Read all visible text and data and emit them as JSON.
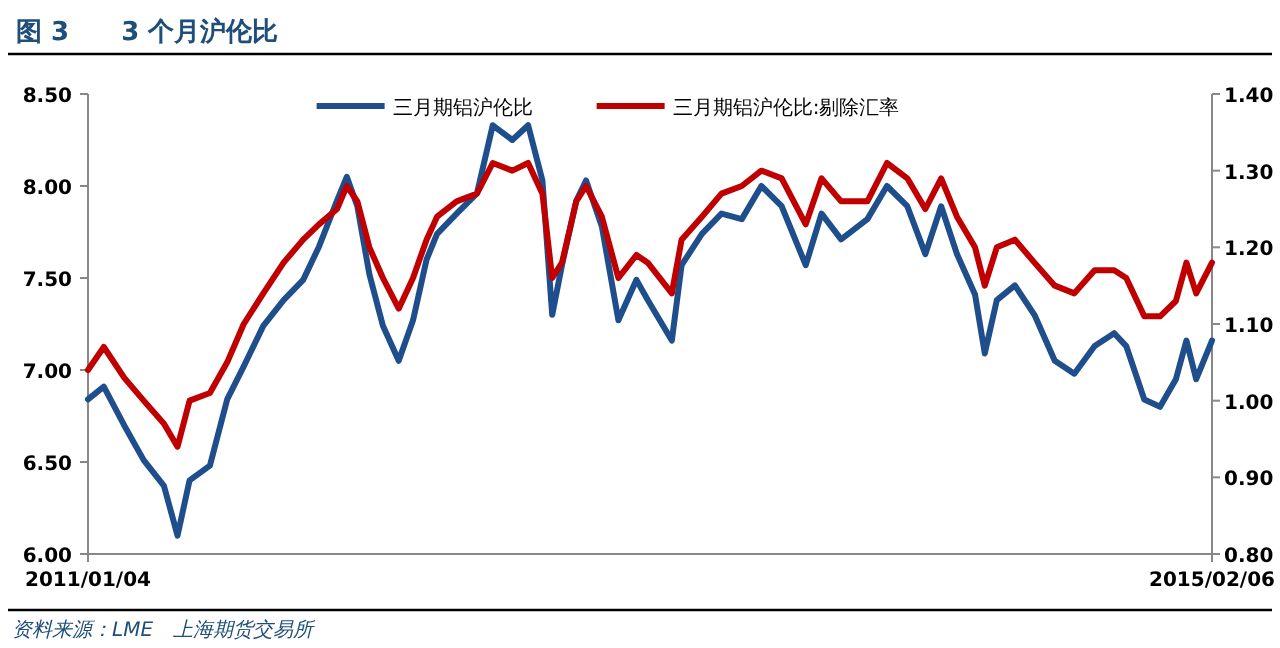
{
  "chart_data": {
    "type": "line",
    "title": "图 3　　3 个月沪伦比",
    "annotations": [
      "资料来源：LME　上海期货交易所"
    ],
    "legend": "top",
    "grid": false,
    "marker": "none",
    "line_style": "solid",
    "x": [
      "2011-01-04",
      "2011-01-25",
      "2011-02-21",
      "2011-03-19",
      "2011-04-15",
      "2011-05-03",
      "2011-05-19",
      "2011-06-15",
      "2011-07-08",
      "2011-07-30",
      "2011-08-25",
      "2011-09-21",
      "2011-10-17",
      "2011-11-07",
      "2011-12-01",
      "2011-12-14",
      "2011-12-28",
      "2012-01-13",
      "2012-01-31",
      "2012-02-21",
      "2012-03-11",
      "2012-03-29",
      "2012-04-12",
      "2012-05-08",
      "2012-06-04",
      "2012-06-25",
      "2012-07-21",
      "2012-08-11",
      "2012-08-30",
      "2012-09-12",
      "2012-09-25",
      "2012-10-14",
      "2012-10-27",
      "2012-11-17",
      "2012-12-09",
      "2013-01-02",
      "2013-01-17",
      "2013-02-18",
      "2013-03-03",
      "2013-03-30",
      "2013-04-25",
      "2013-05-22",
      "2013-06-17",
      "2013-07-14",
      "2013-08-15",
      "2013-09-05",
      "2013-10-01",
      "2013-11-05",
      "2013-12-01",
      "2013-12-28",
      "2014-01-21",
      "2014-02-11",
      "2014-03-04",
      "2014-03-28",
      "2014-04-10",
      "2014-04-26",
      "2014-05-20",
      "2014-06-15",
      "2014-07-12",
      "2014-08-07",
      "2014-09-03",
      "2014-09-29",
      "2014-10-15",
      "2014-11-08",
      "2014-11-29",
      "2014-12-20",
      "2015-01-03",
      "2015-01-16",
      "2015-02-06"
    ],
    "xlim": [
      "2011-01-04",
      "2015-02-06"
    ],
    "xticks": [
      {
        "value": "2011-01-04",
        "label": "2011/01/04"
      },
      {
        "value": "2015-02-06",
        "label": "2015/02/06"
      }
    ],
    "ylim": [
      6,
      8.5
    ],
    "yticks": [
      {
        "value": 6,
        "label": "6.00"
      },
      {
        "value": 6.5,
        "label": "6.50"
      },
      {
        "value": 7,
        "label": "7.00"
      },
      {
        "value": 7.5,
        "label": "7.50"
      },
      {
        "value": 8,
        "label": "8.00"
      },
      {
        "value": 8.5,
        "label": "8.50"
      }
    ],
    "y2lim": [
      0.8,
      1.4
    ],
    "y2ticks": [
      {
        "value": 0.8,
        "label": "0.80"
      },
      {
        "value": 0.9,
        "label": "0.90"
      },
      {
        "value": 1.0,
        "label": "1.00"
      },
      {
        "value": 1.1,
        "label": "1.10"
      },
      {
        "value": 1.2,
        "label": "1.20"
      },
      {
        "value": 1.3,
        "label": "1.30"
      },
      {
        "value": 1.4,
        "label": "1.40"
      }
    ],
    "series": [
      {
        "name": "三月期铝沪伦比",
        "color": "#1f4e8c",
        "values": [
          6.84,
          6.91,
          6.7,
          6.51,
          6.37,
          6.1,
          6.4,
          6.48,
          6.84,
          7.02,
          7.24,
          7.38,
          7.49,
          7.67,
          7.92,
          8.05,
          7.89,
          7.52,
          7.24,
          7.05,
          7.27,
          7.6,
          7.74,
          7.85,
          7.96,
          8.33,
          8.25,
          8.33,
          8.03,
          7.3,
          7.57,
          7.92,
          8.03,
          7.78,
          7.27,
          7.49,
          7.38,
          7.16,
          7.57,
          7.74,
          7.85,
          7.82,
          8.0,
          7.89,
          7.57,
          7.85,
          7.71,
          7.82,
          8.0,
          7.89,
          7.63,
          7.89,
          7.63,
          7.41,
          7.09,
          7.38,
          7.46,
          7.3,
          7.05,
          6.98,
          7.13,
          7.2,
          7.13,
          6.84,
          6.8,
          6.95,
          7.16,
          6.95,
          7.16
        ]
      },
      {
        "name": "三月期铝沪伦比:剔除汇率",
        "color": "#c00000",
        "axis": "y2",
        "values": [
          1.04,
          1.07,
          1.03,
          1.0,
          0.97,
          0.94,
          1.0,
          1.01,
          1.05,
          1.1,
          1.14,
          1.18,
          1.21,
          1.23,
          1.25,
          1.28,
          1.26,
          1.2,
          1.16,
          1.12,
          1.16,
          1.21,
          1.24,
          1.26,
          1.27,
          1.31,
          1.3,
          1.31,
          1.27,
          1.16,
          1.18,
          1.26,
          1.28,
          1.24,
          1.16,
          1.19,
          1.18,
          1.14,
          1.21,
          1.24,
          1.27,
          1.28,
          1.3,
          1.29,
          1.23,
          1.29,
          1.26,
          1.26,
          1.31,
          1.29,
          1.25,
          1.29,
          1.24,
          1.2,
          1.15,
          1.2,
          1.21,
          1.18,
          1.15,
          1.14,
          1.17,
          1.17,
          1.16,
          1.11,
          1.11,
          1.13,
          1.18,
          1.14,
          1.18
        ]
      }
    ]
  }
}
